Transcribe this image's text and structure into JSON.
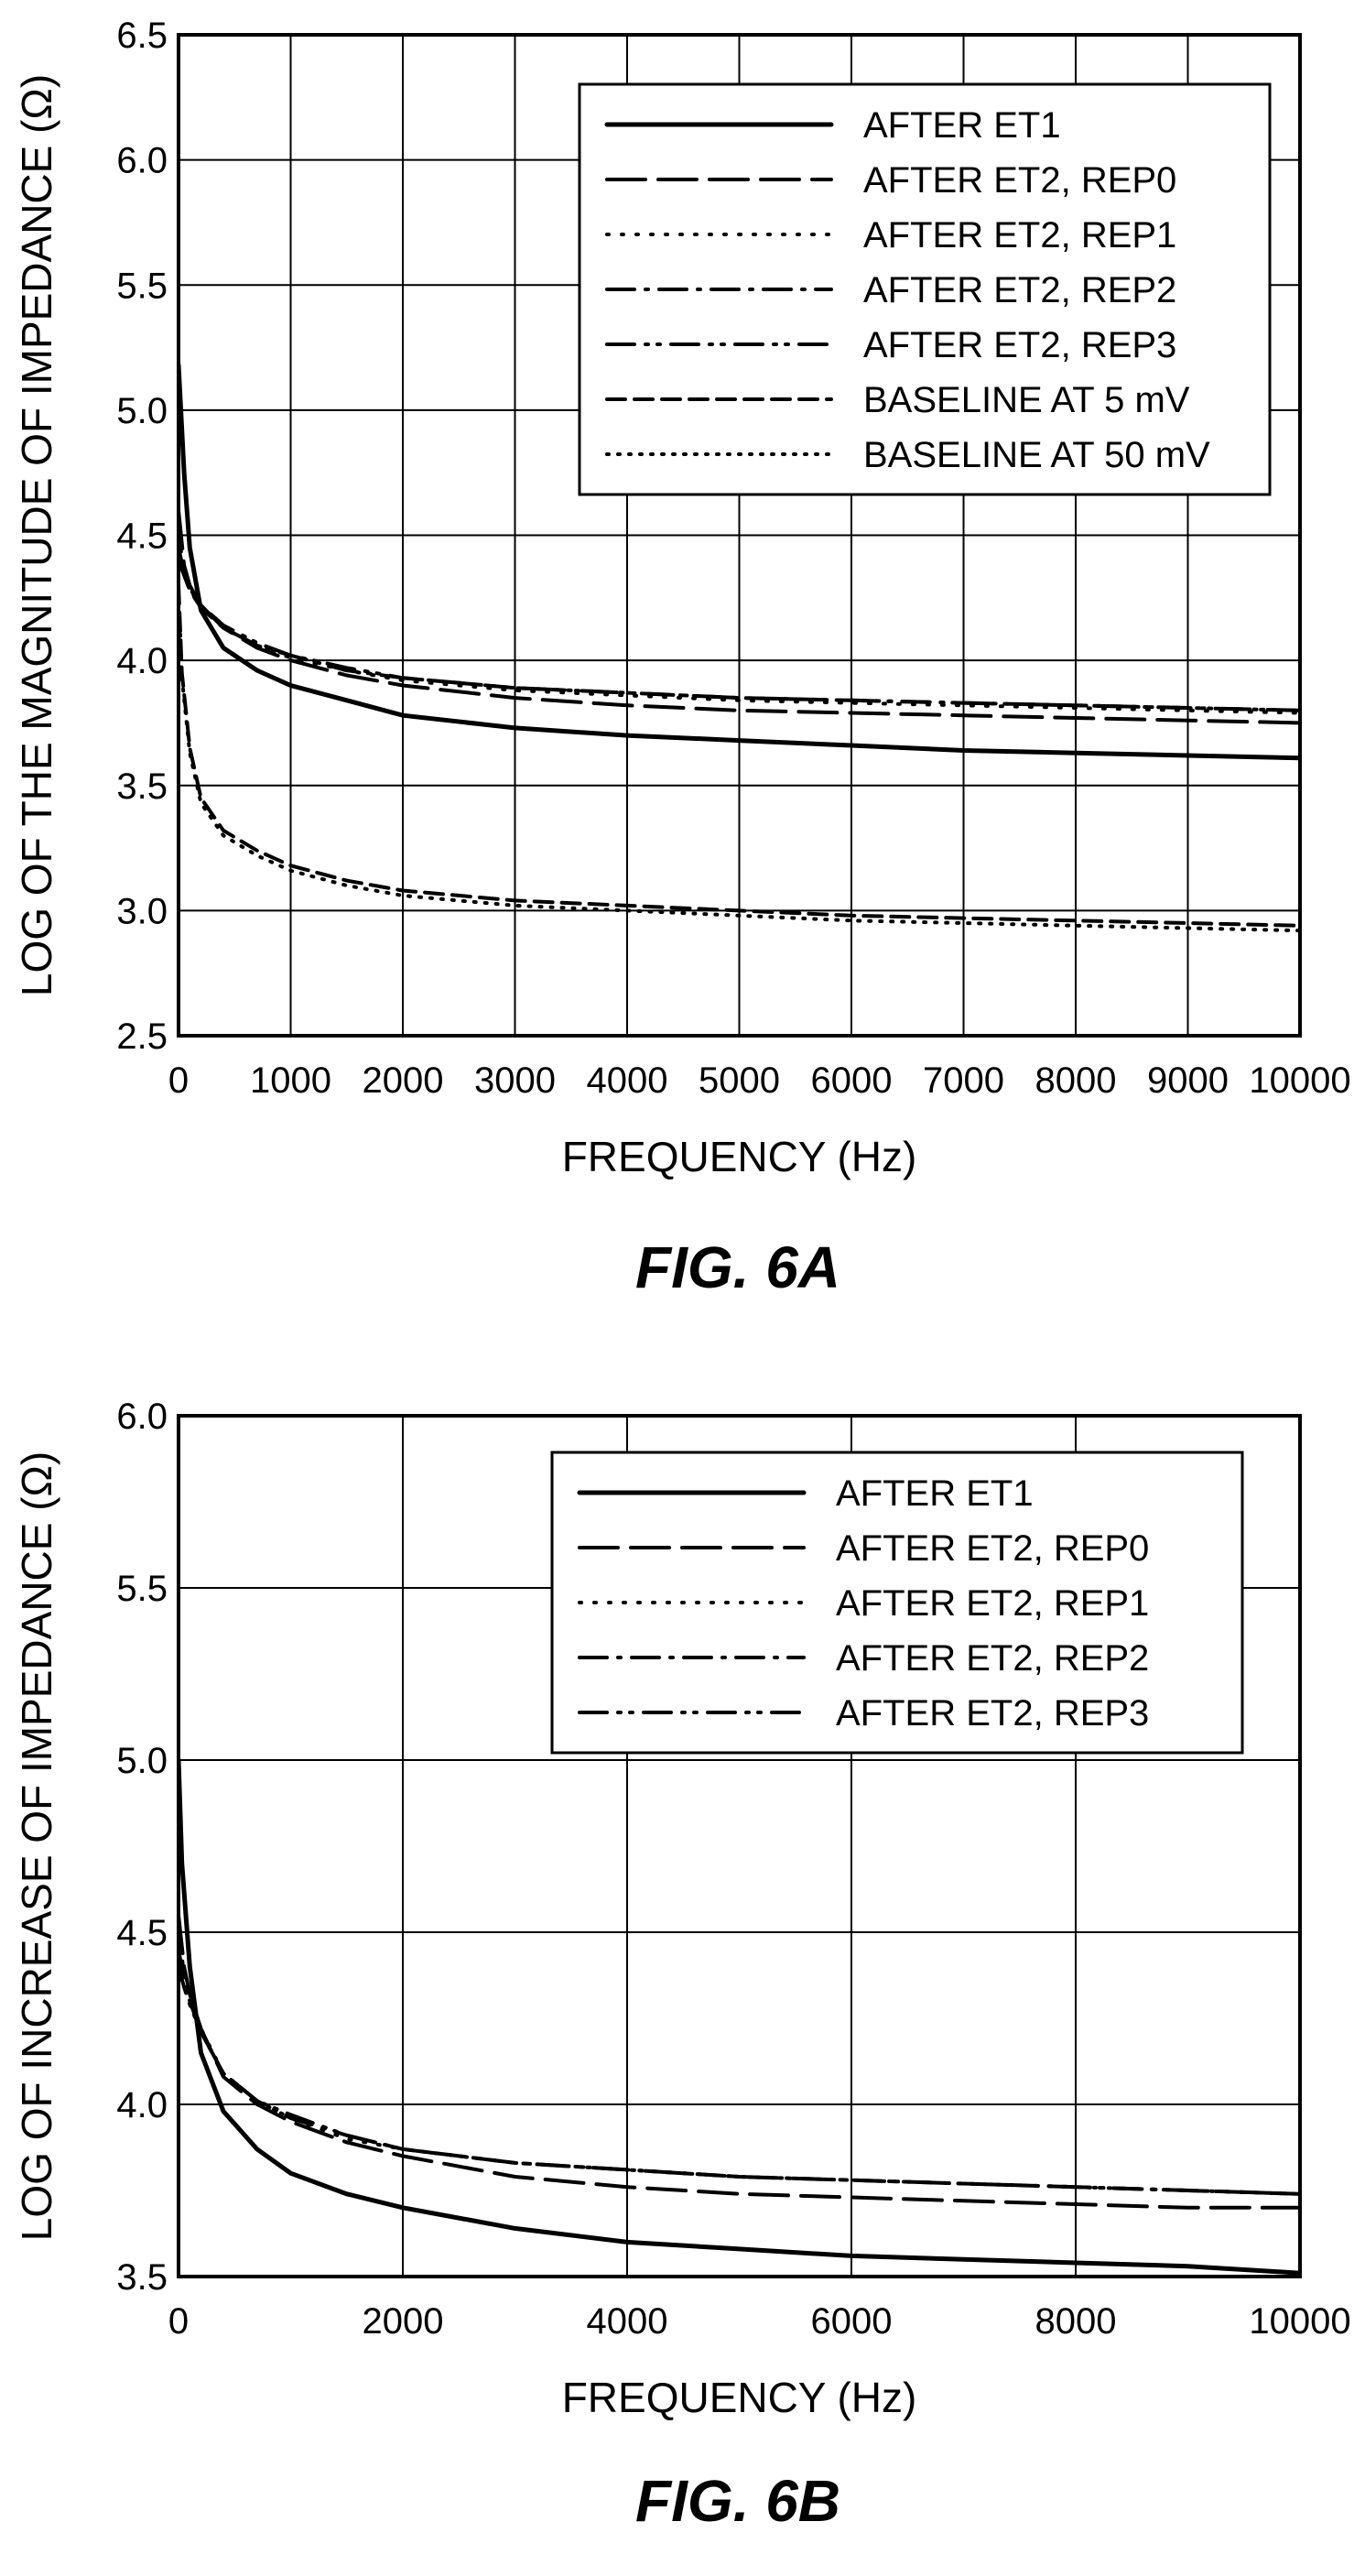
{
  "figures": [
    {
      "caption": "FIG. 6A",
      "chart_data": {
        "type": "line",
        "title": "",
        "xlabel": "FREQUENCY (Hz)",
        "ylabel": "LOG OF THE MAGNITUDE OF IMPEDANCE (Ω)",
        "xlim": [
          0,
          10000
        ],
        "ylim": [
          2.5,
          6.5
        ],
        "xticks": [
          0,
          1000,
          2000,
          3000,
          4000,
          5000,
          6000,
          7000,
          8000,
          9000,
          10000
        ],
        "yticks": [
          2.5,
          3.0,
          3.5,
          4.0,
          4.5,
          5.0,
          5.5,
          6.0,
          6.5
        ],
        "ytick_labels": [
          "2.5",
          "3.0",
          "3.5",
          "4.0",
          "4.5",
          "5.0",
          "5.5",
          "6.0",
          "6.5"
        ],
        "grid": true,
        "legend_position": "top-right",
        "series": [
          {
            "name": "AFTER ET1",
            "dash": "solid",
            "x": [
              0,
              50,
              100,
              200,
              400,
              700,
              1000,
              1500,
              2000,
              3000,
              4000,
              5000,
              6000,
              7000,
              8000,
              9000,
              10000
            ],
            "y": [
              5.18,
              4.75,
              4.45,
              4.2,
              4.05,
              3.96,
              3.9,
              3.84,
              3.78,
              3.73,
              3.7,
              3.68,
              3.66,
              3.64,
              3.63,
              3.62,
              3.61
            ]
          },
          {
            "name": "AFTER ET2, REP0",
            "dash": "long-dash",
            "x": [
              0,
              50,
              100,
              200,
              400,
              700,
              1000,
              1500,
              2000,
              3000,
              4000,
              5000,
              6000,
              7000,
              8000,
              9000,
              10000
            ],
            "y": [
              4.6,
              4.38,
              4.3,
              4.22,
              4.13,
              4.05,
              4.0,
              3.94,
              3.9,
              3.85,
              3.82,
              3.8,
              3.79,
              3.78,
              3.77,
              3.76,
              3.75
            ]
          },
          {
            "name": "AFTER ET2, REP1",
            "dash": "dot",
            "x": [
              0,
              50,
              100,
              200,
              400,
              700,
              1000,
              1500,
              2000,
              3000,
              4000,
              5000,
              6000,
              7000,
              8000,
              9000,
              10000
            ],
            "y": [
              4.5,
              4.36,
              4.29,
              4.21,
              4.13,
              4.06,
              4.01,
              3.96,
              3.92,
              3.88,
              3.86,
              3.84,
              3.83,
              3.82,
              3.81,
              3.8,
              3.79
            ]
          },
          {
            "name": "AFTER ET2, REP2",
            "dash": "dash-dot",
            "x": [
              0,
              50,
              100,
              200,
              400,
              700,
              1000,
              1500,
              2000,
              3000,
              4000,
              5000,
              6000,
              7000,
              8000,
              9000,
              10000
            ],
            "y": [
              4.45,
              4.35,
              4.28,
              4.21,
              4.13,
              4.06,
              4.02,
              3.96,
              3.93,
              3.89,
              3.87,
              3.85,
              3.84,
              3.83,
              3.82,
              3.81,
              3.8
            ]
          },
          {
            "name": "AFTER ET2, REP3",
            "dash": "dash-dot-dot",
            "x": [
              0,
              50,
              100,
              200,
              400,
              700,
              1000,
              1500,
              2000,
              3000,
              4000,
              5000,
              6000,
              7000,
              8000,
              9000,
              10000
            ],
            "y": [
              4.4,
              4.34,
              4.28,
              4.22,
              4.14,
              4.07,
              4.02,
              3.97,
              3.93,
              3.89,
              3.87,
              3.85,
              3.84,
              3.83,
              3.82,
              3.81,
              3.8
            ]
          },
          {
            "name": "BASELINE AT 5 mV",
            "dash": "dash",
            "x": [
              0,
              30,
              100,
              200,
              400,
              700,
              1000,
              1500,
              2000,
              3000,
              4000,
              5000,
              6000,
              7000,
              8000,
              9000,
              10000
            ],
            "y": [
              4.3,
              3.95,
              3.65,
              3.45,
              3.32,
              3.24,
              3.18,
              3.12,
              3.08,
              3.04,
              3.02,
              3.0,
              2.98,
              2.97,
              2.96,
              2.95,
              2.94
            ]
          },
          {
            "name": "BASELINE AT 50 mV",
            "dash": "fine-dot",
            "x": [
              0,
              30,
              100,
              200,
              400,
              700,
              1000,
              1500,
              2000,
              3000,
              4000,
              5000,
              6000,
              7000,
              8000,
              9000,
              10000
            ],
            "y": [
              4.28,
              3.93,
              3.63,
              3.43,
              3.3,
              3.22,
              3.16,
              3.1,
              3.06,
              3.02,
              3.0,
              2.98,
              2.96,
              2.95,
              2.94,
              2.93,
              2.92
            ]
          }
        ]
      }
    },
    {
      "caption": "FIG. 6B",
      "chart_data": {
        "type": "line",
        "title": "",
        "xlabel": "FREQUENCY (Hz)",
        "ylabel": "LOG OF INCREASE OF IMPEDANCE (Ω)",
        "xlim": [
          0,
          10000
        ],
        "ylim": [
          3.5,
          6.0
        ],
        "xticks": [
          0,
          2000,
          4000,
          6000,
          8000,
          10000
        ],
        "yticks": [
          3.5,
          4.0,
          4.5,
          5.0,
          5.5,
          6.0
        ],
        "ytick_labels": [
          "3.5",
          "4.0",
          "4.5",
          "5.0",
          "5.5",
          "6.0"
        ],
        "grid": true,
        "legend_position": "top-right",
        "series": [
          {
            "name": "AFTER ET1",
            "dash": "solid",
            "x": [
              0,
              30,
              100,
              200,
              400,
              700,
              1000,
              1500,
              2000,
              3000,
              4000,
              5000,
              6000,
              7000,
              8000,
              9000,
              10000
            ],
            "y": [
              5.0,
              4.7,
              4.4,
              4.15,
              3.98,
              3.87,
              3.8,
              3.74,
              3.7,
              3.64,
              3.6,
              3.58,
              3.56,
              3.55,
              3.54,
              3.53,
              3.51
            ]
          },
          {
            "name": "AFTER ET2, REP0",
            "dash": "long-dash",
            "x": [
              0,
              50,
              100,
              200,
              400,
              700,
              1000,
              1500,
              2000,
              3000,
              4000,
              5000,
              6000,
              7000,
              8000,
              9000,
              10000
            ],
            "y": [
              4.55,
              4.4,
              4.32,
              4.22,
              4.08,
              4.0,
              3.95,
              3.89,
              3.85,
              3.79,
              3.76,
              3.74,
              3.73,
              3.72,
              3.71,
              3.7,
              3.7
            ]
          },
          {
            "name": "AFTER ET2, REP1",
            "dash": "dot",
            "x": [
              0,
              50,
              100,
              200,
              400,
              700,
              1000,
              1500,
              2000,
              3000,
              4000,
              5000,
              6000,
              7000,
              8000,
              9000,
              10000
            ],
            "y": [
              4.5,
              4.38,
              4.31,
              4.22,
              4.09,
              4.01,
              3.96,
              3.9,
              3.87,
              3.83,
              3.81,
              3.79,
              3.78,
              3.77,
              3.76,
              3.75,
              3.74
            ]
          },
          {
            "name": "AFTER ET2, REP2",
            "dash": "dash-dot",
            "x": [
              0,
              50,
              100,
              200,
              400,
              700,
              1000,
              1500,
              2000,
              3000,
              4000,
              5000,
              6000,
              7000,
              8000,
              9000,
              10000
            ],
            "y": [
              4.45,
              4.36,
              4.3,
              4.21,
              4.09,
              4.01,
              3.96,
              3.91,
              3.87,
              3.83,
              3.81,
              3.79,
              3.78,
              3.77,
              3.76,
              3.75,
              3.74
            ]
          },
          {
            "name": "AFTER ET2, REP3",
            "dash": "dash-dot-dot",
            "x": [
              0,
              50,
              100,
              200,
              400,
              700,
              1000,
              1500,
              2000,
              3000,
              4000,
              5000,
              6000,
              7000,
              8000,
              9000,
              10000
            ],
            "y": [
              4.4,
              4.34,
              4.29,
              4.21,
              4.09,
              4.01,
              3.97,
              3.91,
              3.87,
              3.83,
              3.81,
              3.79,
              3.78,
              3.77,
              3.76,
              3.75,
              3.74
            ]
          }
        ]
      }
    }
  ]
}
